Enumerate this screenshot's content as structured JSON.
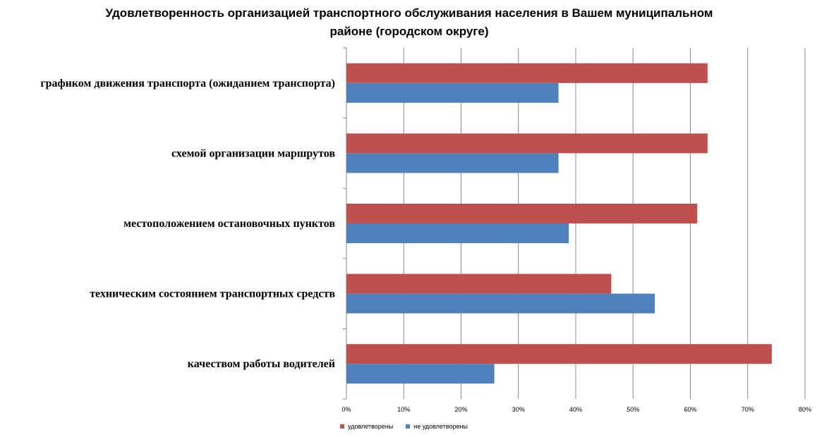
{
  "chart_data": {
    "type": "bar",
    "orientation": "horizontal",
    "title_lines": [
      "Удовлетворенность организацией транспортного обслуживания населения в Вашем муниципальном",
      "районе (городском округе)"
    ],
    "categories": [
      "графиком движения транспорта (ожиданием транспорта)",
      "схемой организации маршрутов",
      "местоположением остановочных пунктов",
      "техническим состоянием транспортных средств",
      "качеством работы водителей"
    ],
    "series": [
      {
        "name": "удовлетворены",
        "color": "#C0504D",
        "values": [
          63,
          63,
          61.2,
          46.2,
          74.2
        ]
      },
      {
        "name": "не удовлетворены",
        "color": "#4F81BD",
        "values": [
          37,
          37,
          38.8,
          53.8,
          25.8
        ]
      }
    ],
    "xlim": [
      0,
      80
    ],
    "xticks": [
      "0%",
      "10%",
      "20%",
      "30%",
      "40%",
      "50%",
      "60%",
      "70%",
      "80%"
    ],
    "grid": true,
    "legend_position": "bottom"
  }
}
